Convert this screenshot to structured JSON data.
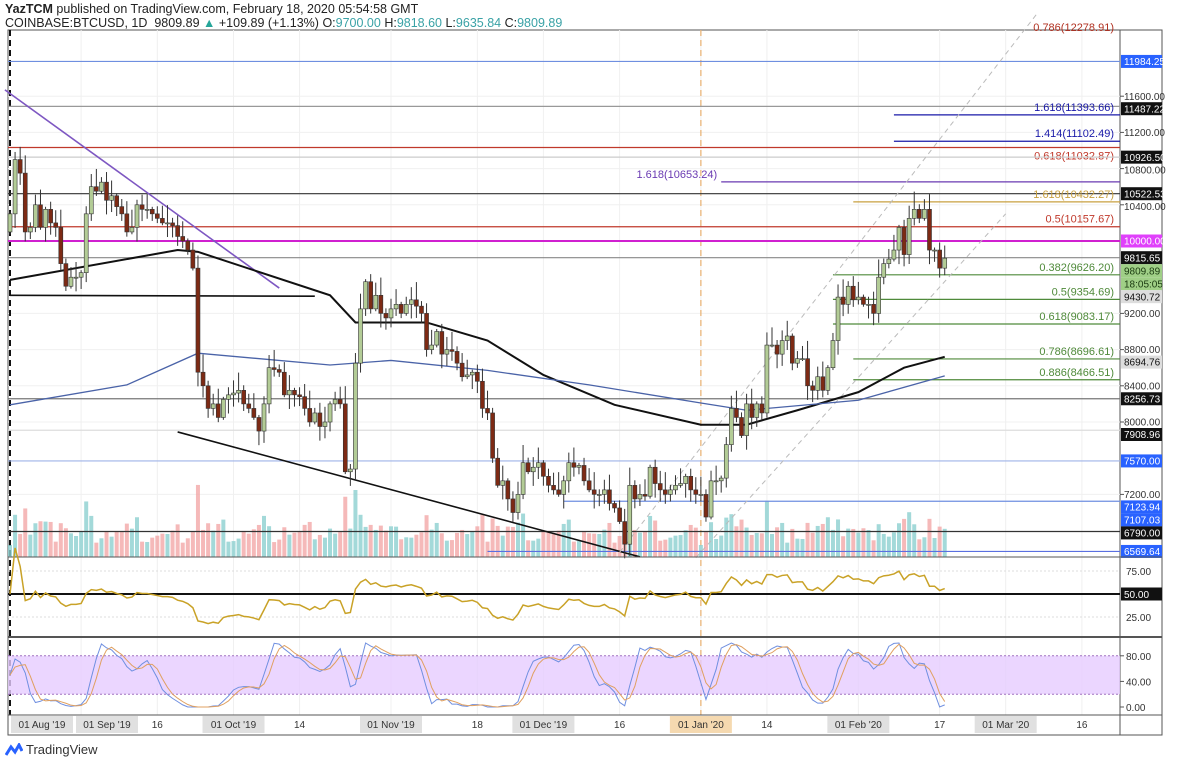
{
  "header": {
    "author": "YazTCM",
    "published": "published on TradingView.com, February 18, 2020 05:54:58 GMT",
    "symbol": "COINBASE:BTCUSD, 1D",
    "last": "9809.89",
    "change_arrow": "▲",
    "change": "+109.89 (+1.13%)",
    "o_label": "O:",
    "o": "9700.00",
    "h_label": "H:",
    "h": "9818.60",
    "l_label": "L:",
    "l": "9635.84",
    "c_label": "C:",
    "c": "9809.89"
  },
  "footer": {
    "brand": "TradingView"
  },
  "chart_data": {
    "type": "candlestick",
    "title": "COINBASE:BTCUSD, 1D",
    "grid": true,
    "candles": {
      "up_color": "#b3cc96",
      "down_color": "#7d2a14",
      "months": [
        {
          "year": 2019,
          "month": 8,
          "first_day": 18,
          "closes": [
            10300,
            10900,
            10750,
            10100,
            10150,
            10400,
            10150,
            10350,
            10200,
            10150,
            9750,
            9500,
            9600,
            9600
          ]
        },
        {
          "year": 2019,
          "month": 9,
          "first_day": 1,
          "closes": [
            9650,
            10300,
            10600,
            10550,
            10650,
            10450,
            10500,
            10380,
            10300,
            10100,
            10150,
            10400,
            10350,
            10350,
            10300,
            10250,
            10200,
            10200,
            10170,
            10050,
            10000,
            9900,
            9700,
            8550,
            8400,
            8150,
            8200,
            8050,
            8250,
            8300
          ]
        },
        {
          "year": 2019,
          "month": 10,
          "first_day": 1,
          "closes": [
            8320,
            8350,
            8200,
            8150,
            8050,
            7900,
            8200,
            8600,
            8580,
            8550,
            8300,
            8350,
            8300,
            8280,
            8150,
            8000,
            8100,
            7950,
            8000,
            8200,
            8250,
            8200,
            7450,
            7480,
            8650,
            9250,
            9550,
            9250,
            9400,
            9200,
            9150
          ]
        },
        {
          "year": 2019,
          "month": 11,
          "first_day": 1,
          "closes": [
            9250,
            9300,
            9200,
            9300,
            9350,
            9280,
            9200,
            8800,
            8850,
            9000,
            8750,
            8800,
            8780,
            8650,
            8500,
            8520,
            8550,
            8450,
            8150,
            8100,
            7600,
            7300,
            7350,
            7150,
            7000,
            7200,
            7550,
            7450,
            7500,
            7550
          ]
        },
        {
          "year": 2019,
          "month": 12,
          "first_day": 1,
          "closes": [
            7400,
            7300,
            7250,
            7200,
            7350,
            7550,
            7500,
            7520,
            7350,
            7250,
            7200,
            7200,
            7250,
            7100,
            7050,
            6900,
            6650,
            7300,
            7150,
            7200,
            7180,
            7500,
            7320,
            7250,
            7200,
            7250,
            7300,
            7320,
            7400,
            7250,
            7200
          ]
        },
        {
          "year": 2020,
          "month": 1,
          "first_day": 1,
          "closes": [
            7200,
            6950,
            7350,
            7350,
            7380,
            7750,
            8150,
            8050,
            7850,
            8200,
            8050,
            8200,
            8100,
            8850,
            8850,
            8750,
            8900,
            8950,
            8650,
            8700,
            8700,
            8400,
            8350,
            8500,
            8350,
            8600,
            8900,
            9380,
            9300,
            9500,
            9350
          ]
        },
        {
          "year": 2020,
          "month": 2,
          "first_day": 1,
          "closes": [
            9380,
            9300,
            9300,
            9200,
            9600,
            9750,
            9800,
            9900,
            10150,
            9850,
            10250,
            10350,
            10250,
            10350,
            9900,
            9900,
            9700,
            9810
          ]
        }
      ]
    },
    "moving_averages": [
      {
        "color": "#111111",
        "points": [
          [
            "2019-08-18",
            9570
          ],
          [
            "2019-09-20",
            9900
          ],
          [
            "2019-09-24",
            9880
          ],
          [
            "2019-10-20",
            9400
          ],
          [
            "2019-10-25",
            9100
          ],
          [
            "2019-11-08",
            9100
          ],
          [
            "2019-11-20",
            8900
          ],
          [
            "2019-12-01",
            8520
          ],
          [
            "2019-12-15",
            8190
          ],
          [
            "2020-01-01",
            7970
          ],
          [
            "2020-01-10",
            7970
          ],
          [
            "2020-01-20",
            8130
          ],
          [
            "2020-02-01",
            8330
          ],
          [
            "2020-02-10",
            8600
          ],
          [
            "2020-02-18",
            8720
          ]
        ]
      },
      {
        "color": "#4a63a8",
        "points": [
          [
            "2019-08-18",
            8190
          ],
          [
            "2019-09-10",
            8410
          ],
          [
            "2019-09-24",
            8760
          ],
          [
            "2019-10-20",
            8630
          ],
          [
            "2019-11-01",
            8680
          ],
          [
            "2019-11-20",
            8570
          ],
          [
            "2019-12-10",
            8410
          ],
          [
            "2020-01-01",
            8210
          ],
          [
            "2020-01-10",
            8130
          ],
          [
            "2020-02-01",
            8240
          ],
          [
            "2020-02-18",
            8510
          ]
        ]
      }
    ],
    "trendlines": [
      {
        "color": "#7e57c2",
        "from": [
          "2019-08-17",
          11670
        ],
        "to": [
          "2019-10-10",
          9480
        ],
        "dashed": false
      },
      {
        "color": "#111111",
        "from": [
          "2019-09-20",
          7890
        ],
        "to": [
          "2019-12-20",
          6510
        ],
        "dashed": false
      },
      {
        "color": "#111111",
        "from": [
          "2019-08-18",
          9400
        ],
        "to": [
          "2019-10-17",
          9390
        ],
        "dashed": false
      },
      {
        "color": "#bbbbbb",
        "from": [
          "2019-12-16",
          6560
        ],
        "to": [
          "2020-03-07",
          12500
        ],
        "dashed": true
      },
      {
        "color": "#bbbbbb",
        "from": [
          "2019-12-31",
          6500
        ],
        "to": [
          "2020-03-01",
          10300
        ],
        "dashed": true
      }
    ],
    "levels": [
      {
        "price": 12278.91,
        "label": "0.786(12278.91)",
        "color": "#b03020",
        "from": null,
        "line": false
      },
      {
        "price": 11984.25,
        "color": "#6f8fe0",
        "from": null,
        "axis": {
          "text": "11984.25",
          "bg": "#2962ff",
          "fg": "#ffffff"
        }
      },
      {
        "price": 11487.22,
        "color": "#999999",
        "from": null,
        "axis": {
          "text": "11487.22",
          "bg": "#111111",
          "fg": "#ffffff"
        }
      },
      {
        "price": 11393.66,
        "label": "1.618(11393.66)",
        "color": "#1a1aa8",
        "from": "2020-02-08"
      },
      {
        "price": 11102.49,
        "label": "1.414(11102.49)",
        "color": "#1a1aa8",
        "from": "2020-02-08"
      },
      {
        "price": 11032.87,
        "label": "0.618(11032.87)",
        "color": "#c0392b",
        "from": null
      },
      {
        "price": 10926.5,
        "color": "#cccccc",
        "from": null,
        "axis": {
          "text": "10926.50",
          "bg": "#111111",
          "fg": "#ffffff"
        }
      },
      {
        "price": 10653.24,
        "label": "1.618(10653.24)",
        "color": "#6a3ab2",
        "from": "2020-01-05",
        "label_left": true
      },
      {
        "price": 10522.53,
        "color": "#333333",
        "from": null,
        "axis": {
          "text": "10522.53",
          "bg": "#111111",
          "fg": "#ffffff"
        }
      },
      {
        "price": 10432.27,
        "label": "1.618(10432.27)",
        "color": "#c8a040",
        "from": "2020-01-31"
      },
      {
        "price": 10157.67,
        "label": "0.5(10157.67)",
        "color": "#c0392b",
        "from": null
      },
      {
        "price": 10000.0,
        "color": "#d020d0",
        "from": null,
        "thick": true,
        "axis": {
          "text": "10000.00",
          "bg": "#e040fb",
          "fg": "#ffffff"
        }
      },
      {
        "price": 9815.65,
        "color": "#888888",
        "from": null,
        "axis": {
          "text": "9815.65",
          "bg": "#111111",
          "fg": "#ffffff"
        }
      },
      {
        "price": 9626.2,
        "label": "0.382(9626.20)",
        "color": "#4f8a3a",
        "from": "2020-01-27"
      },
      {
        "price": 9430.72,
        "color": "#cccccc",
        "from": null,
        "line": false,
        "axis": {
          "text": "9430.72",
          "bg": "#dddddd",
          "fg": "#111111"
        }
      },
      {
        "price": 9354.69,
        "label": "0.5(9354.69)",
        "color": "#4f8a3a",
        "from": "2020-01-27"
      },
      {
        "price": 9083.17,
        "label": "0.618(9083.17)",
        "color": "#4f8a3a",
        "from": "2020-01-27"
      },
      {
        "price": 8694.76,
        "color": "#cccccc",
        "from": null,
        "line": false,
        "axis": {
          "text": "8694.76",
          "bg": "#dddddd",
          "fg": "#111111"
        }
      },
      {
        "price": 8696.61,
        "label": "0.786(8696.61)",
        "color": "#4f8a3a",
        "from": "2020-01-31"
      },
      {
        "price": 8466.51,
        "label": "0.886(8466.51)",
        "color": "#4f8a3a",
        "from": "2020-01-31"
      },
      {
        "price": 8256.73,
        "color": "#777777",
        "from": null,
        "axis": {
          "text": "8256.73",
          "bg": "#111111",
          "fg": "#ffffff"
        }
      },
      {
        "price": 7908.96,
        "color": "#dddddd",
        "from": null,
        "axis": {
          "text": "7908.96",
          "bg": "#111111",
          "fg": "#ffffff"
        }
      },
      {
        "price": 7570.0,
        "color": "#9fb3e8",
        "from": null,
        "axis": {
          "text": "7570.00",
          "bg": "#2962ff",
          "fg": "#ffffff"
        }
      },
      {
        "price": 7123.94,
        "color": "#6f8fe0",
        "from": "2019-12-05",
        "axis": {
          "text": "7123.94",
          "bg": "#2962ff",
          "fg": "#ffffff"
        }
      },
      {
        "price": 7107.03,
        "color": "#6f8fe0",
        "from": "2019-12-05",
        "line": false,
        "axis": {
          "text": "7107.03",
          "bg": "#2962ff",
          "fg": "#ffffff"
        }
      },
      {
        "price": 6790.0,
        "color": "#333333",
        "from": null,
        "axis": {
          "text": "6790.00",
          "bg": "#111111",
          "fg": "#ffffff"
        }
      },
      {
        "price": 6569.64,
        "color": "#5a6fe0",
        "from": "2019-11-20",
        "axis": {
          "text": "6569.64",
          "bg": "#2962ff",
          "fg": "#ffffff"
        }
      }
    ],
    "current_price": {
      "text": "9809.89",
      "price": 9809.89,
      "countdown": "18:05:05",
      "bg": "#9fcf86",
      "fg": "#1a3a10"
    },
    "y_ticks": [
      11600,
      11200,
      10800,
      10400,
      9200,
      8800,
      8400,
      8000,
      7200
    ],
    "vertical_markers": [
      {
        "date": "2020-01-01",
        "color": "#e8b070",
        "dashed": true
      },
      {
        "date": "2019-08-18",
        "color": "#111111",
        "dashed": true
      }
    ],
    "x_labels": [
      {
        "text": "01 Aug '19",
        "date": "2019-08-01",
        "kind": "month"
      },
      {
        "text": "01 Sep '19",
        "date": "2019-09-01",
        "kind": "month"
      },
      {
        "text": "16",
        "date": "2019-09-16",
        "kind": "day"
      },
      {
        "text": "01 Oct '19",
        "date": "2019-10-01",
        "kind": "month"
      },
      {
        "text": "14",
        "date": "2019-10-14",
        "kind": "day"
      },
      {
        "text": "01 Nov '19",
        "date": "2019-11-01",
        "kind": "month"
      },
      {
        "text": "18",
        "date": "2019-11-18",
        "kind": "day"
      },
      {
        "text": "01 Dec '19",
        "date": "2019-12-01",
        "kind": "month"
      },
      {
        "text": "16",
        "date": "2019-12-16",
        "kind": "day"
      },
      {
        "text": "01 Jan '20",
        "date": "2020-01-01",
        "kind": "year"
      },
      {
        "text": "14",
        "date": "2020-01-14",
        "kind": "day"
      },
      {
        "text": "01 Feb '20",
        "date": "2020-02-01",
        "kind": "month"
      },
      {
        "text": "17",
        "date": "2020-02-17",
        "kind": "day"
      },
      {
        "text": "01 Mar '20",
        "date": "2020-03-01",
        "kind": "month"
      },
      {
        "text": "16",
        "date": "2020-03-16",
        "kind": "day"
      }
    ],
    "rsi": {
      "color": "#c9a227",
      "ticks": [
        {
          "v": 75,
          "text": "75.00"
        },
        {
          "v": 50,
          "text": "50.00",
          "boxed": true
        },
        {
          "v": 25,
          "text": "25.00"
        }
      ],
      "range": [
        0,
        100
      ]
    },
    "stoch_rsi": {
      "k_color": "#6f8fe0",
      "d_color": "#e0a060",
      "band": [
        20,
        80
      ],
      "band_color": "#e6ccff",
      "ticks": [
        {
          "v": 80,
          "text": "80.00"
        },
        {
          "v": 40,
          "text": "40.00"
        },
        {
          "v": 0,
          "text": "0.00"
        }
      ],
      "range": [
        0,
        100
      ]
    }
  }
}
